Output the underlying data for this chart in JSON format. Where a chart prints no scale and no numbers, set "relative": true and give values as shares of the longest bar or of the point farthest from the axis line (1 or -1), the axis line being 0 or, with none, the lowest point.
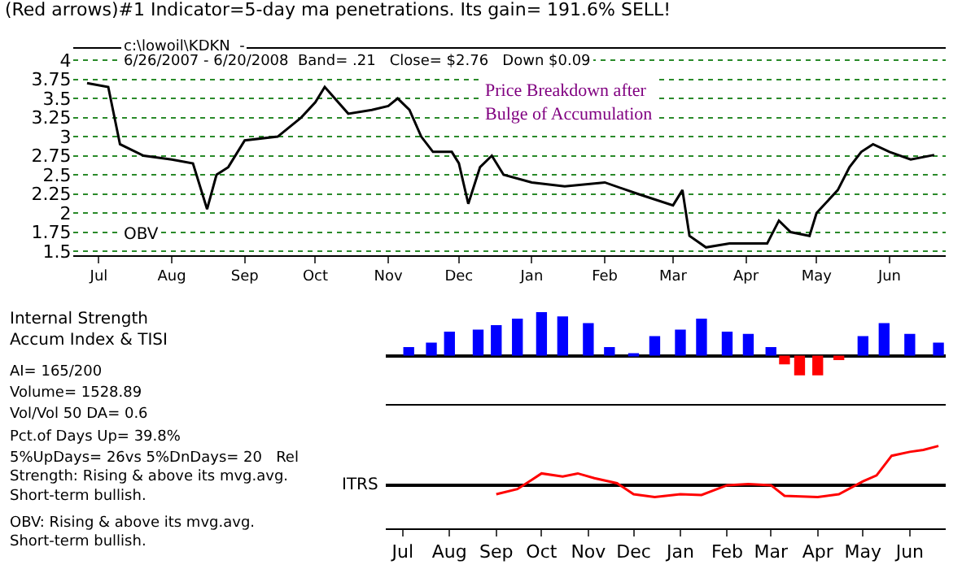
{
  "chart_data": [
    {
      "type": "line",
      "title": "(Red arrows)#1 Indicator=5-day ma penetrations. Its gain= 191.6% SELL!",
      "annotations": [
        "c:\\lowoil\\KDKN  -",
        "6/26/2007 - 6/20/2008  Band= .21   Close= $2.76   Down $0.09",
        "Price Breakdown after Bulge of Accumulation",
        "OBV"
      ],
      "x": [
        "2007-06-26",
        "2007-07-05",
        "2007-07-10",
        "2007-07-20",
        "2007-08-01",
        "2007-08-10",
        "2007-08-16",
        "2007-08-20",
        "2007-08-25",
        "2007-09-01",
        "2007-09-15",
        "2007-09-25",
        "2007-10-01",
        "2007-10-05",
        "2007-10-15",
        "2007-10-25",
        "2007-11-01",
        "2007-11-05",
        "2007-11-10",
        "2007-11-15",
        "2007-11-20",
        "2007-11-28",
        "2007-12-01",
        "2007-12-05",
        "2007-12-10",
        "2007-12-15",
        "2007-12-20",
        "2008-01-01",
        "2008-01-15",
        "2008-02-01",
        "2008-02-15",
        "2008-03-01",
        "2008-03-05",
        "2008-03-08",
        "2008-03-15",
        "2008-03-25",
        "2008-04-01",
        "2008-04-10",
        "2008-04-15",
        "2008-04-20",
        "2008-04-28",
        "2008-05-01",
        "2008-05-10",
        "2008-05-15",
        "2008-05-20",
        "2008-05-25",
        "2008-06-01",
        "2008-06-10",
        "2008-06-20"
      ],
      "series": [
        {
          "color": "#000000",
          "values": [
            3.7,
            3.65,
            2.9,
            2.75,
            2.7,
            2.65,
            2.05,
            2.5,
            2.6,
            2.95,
            3.0,
            3.25,
            3.45,
            3.65,
            3.3,
            3.35,
            3.4,
            3.5,
            3.35,
            3.0,
            2.8,
            2.8,
            2.65,
            2.12,
            2.6,
            2.75,
            2.5,
            2.4,
            2.35,
            2.4,
            2.25,
            2.1,
            2.3,
            1.7,
            1.55,
            1.6,
            1.6,
            1.6,
            1.9,
            1.75,
            1.7,
            2.0,
            2.3,
            2.6,
            2.8,
            2.9,
            2.8,
            2.7,
            2.76
          ]
        }
      ],
      "xlim": [
        "2007-06-20",
        "2008-06-25"
      ],
      "ylim": [
        1.45,
        4.15
      ],
      "yticks": [
        1.5,
        1.75,
        2,
        2.25,
        2.5,
        2.75,
        3,
        3.25,
        3.5,
        3.75,
        4
      ],
      "xticks": [
        {
          "value": "2007-07-01",
          "label": "Jul"
        },
        {
          "value": "2007-08-01",
          "label": "Aug"
        },
        {
          "value": "2007-09-01",
          "label": "Sep"
        },
        {
          "value": "2007-10-01",
          "label": "Oct"
        },
        {
          "value": "2007-11-01",
          "label": "Nov"
        },
        {
          "value": "2007-12-01",
          "label": "Dec"
        },
        {
          "value": "2008-01-01",
          "label": "Jan"
        },
        {
          "value": "2008-02-01",
          "label": "Feb"
        },
        {
          "value": "2008-03-01",
          "label": "Mar"
        },
        {
          "value": "2008-04-01",
          "label": "Apr"
        },
        {
          "value": "2008-05-01",
          "label": "May"
        },
        {
          "value": "2008-06-01",
          "label": "Jun"
        }
      ],
      "grid": "y"
    },
    {
      "type": "bar",
      "relative": true,
      "ylabel": "Internal Strength\nAccum Index & TISI",
      "annotations": [
        "AI= 165/200",
        "Volume= 1528.89",
        "Vol/Vol 50 DA= 0.6",
        "Pct.of Days Up= 39.8%",
        "5%UpDays= 26vs 5%DnDays= 20   Rel Strength: Rising & above its mvg.avg. Short-term bullish.",
        "OBV: Rising & above its mvg.avg. Short-term bullish."
      ],
      "x": [
        "2007-07-05",
        "2007-07-20",
        "2007-08-01",
        "2007-08-20",
        "2007-09-01",
        "2007-09-15",
        "2007-10-01",
        "2007-10-15",
        "2007-11-01",
        "2007-11-15",
        "2007-12-01",
        "2007-12-15",
        "2008-01-01",
        "2008-01-15",
        "2008-02-01",
        "2008-02-15",
        "2008-03-01",
        "2008-03-10",
        "2008-03-20",
        "2008-04-01",
        "2008-04-15",
        "2008-05-01",
        "2008-05-15",
        "2008-06-01",
        "2008-06-20"
      ],
      "values": [
        0.2,
        0.3,
        0.55,
        0.6,
        0.7,
        0.85,
        1.0,
        0.9,
        0.75,
        0.2,
        0.05,
        0.45,
        0.6,
        0.85,
        0.55,
        0.5,
        0.2,
        -0.2,
        -0.45,
        -0.45,
        -0.1,
        0.45,
        0.75,
        0.5,
        0.3
      ],
      "colors": [
        "#0000ff",
        "#0000ff",
        "#0000ff",
        "#0000ff",
        "#0000ff",
        "#0000ff",
        "#0000ff",
        "#0000ff",
        "#0000ff",
        "#0000ff",
        "#0000ff",
        "#0000ff",
        "#0000ff",
        "#0000ff",
        "#0000ff",
        "#0000ff",
        "#0000ff",
        "#ff0000",
        "#ff0000",
        "#ff0000",
        "#ff0000",
        "#0000ff",
        "#0000ff",
        "#0000ff",
        "#0000ff"
      ],
      "xlim": [
        "2007-06-20",
        "2008-06-25"
      ],
      "tick_labels": false
    },
    {
      "type": "line",
      "relative": true,
      "ylabel": "ITRS",
      "x": [
        "2007-09-01",
        "2007-09-15",
        "2007-09-25",
        "2007-10-01",
        "2007-10-15",
        "2007-10-25",
        "2007-11-05",
        "2007-11-20",
        "2007-12-01",
        "2007-12-15",
        "2008-01-01",
        "2008-01-15",
        "2008-02-01",
        "2008-02-15",
        "2008-03-01",
        "2008-03-10",
        "2008-04-01",
        "2008-04-15",
        "2008-05-01",
        "2008-05-10",
        "2008-05-20",
        "2008-06-01",
        "2008-06-10",
        "2008-06-20"
      ],
      "series": [
        {
          "color": "#ff0000",
          "values": [
            -0.23,
            -0.1,
            0.15,
            0.3,
            0.22,
            0.3,
            0.18,
            0.05,
            -0.23,
            -0.3,
            -0.23,
            -0.25,
            0,
            0.03,
            0,
            -0.27,
            -0.3,
            -0.23,
            0.1,
            0.25,
            0.75,
            0.85,
            0.9,
            1.0
          ]
        }
      ],
      "xlim": [
        "2007-06-20",
        "2008-06-25"
      ],
      "xticks": [
        {
          "value": "2007-07-01",
          "label": "Jul"
        },
        {
          "value": "2007-08-01",
          "label": "Aug"
        },
        {
          "value": "2007-09-01",
          "label": "Sep"
        },
        {
          "value": "2007-10-01",
          "label": "Oct"
        },
        {
          "value": "2007-11-01",
          "label": "Nov"
        },
        {
          "value": "2007-12-01",
          "label": "Dec"
        },
        {
          "value": "2008-01-01",
          "label": "Jan"
        },
        {
          "value": "2008-02-01",
          "label": "Feb"
        },
        {
          "value": "2008-03-01",
          "label": "Mar"
        },
        {
          "value": "2008-04-01",
          "label": "Apr"
        },
        {
          "value": "2008-05-01",
          "label": "May"
        },
        {
          "value": "2008-06-01",
          "label": "Jun"
        }
      ],
      "tick_labels": "x"
    }
  ]
}
